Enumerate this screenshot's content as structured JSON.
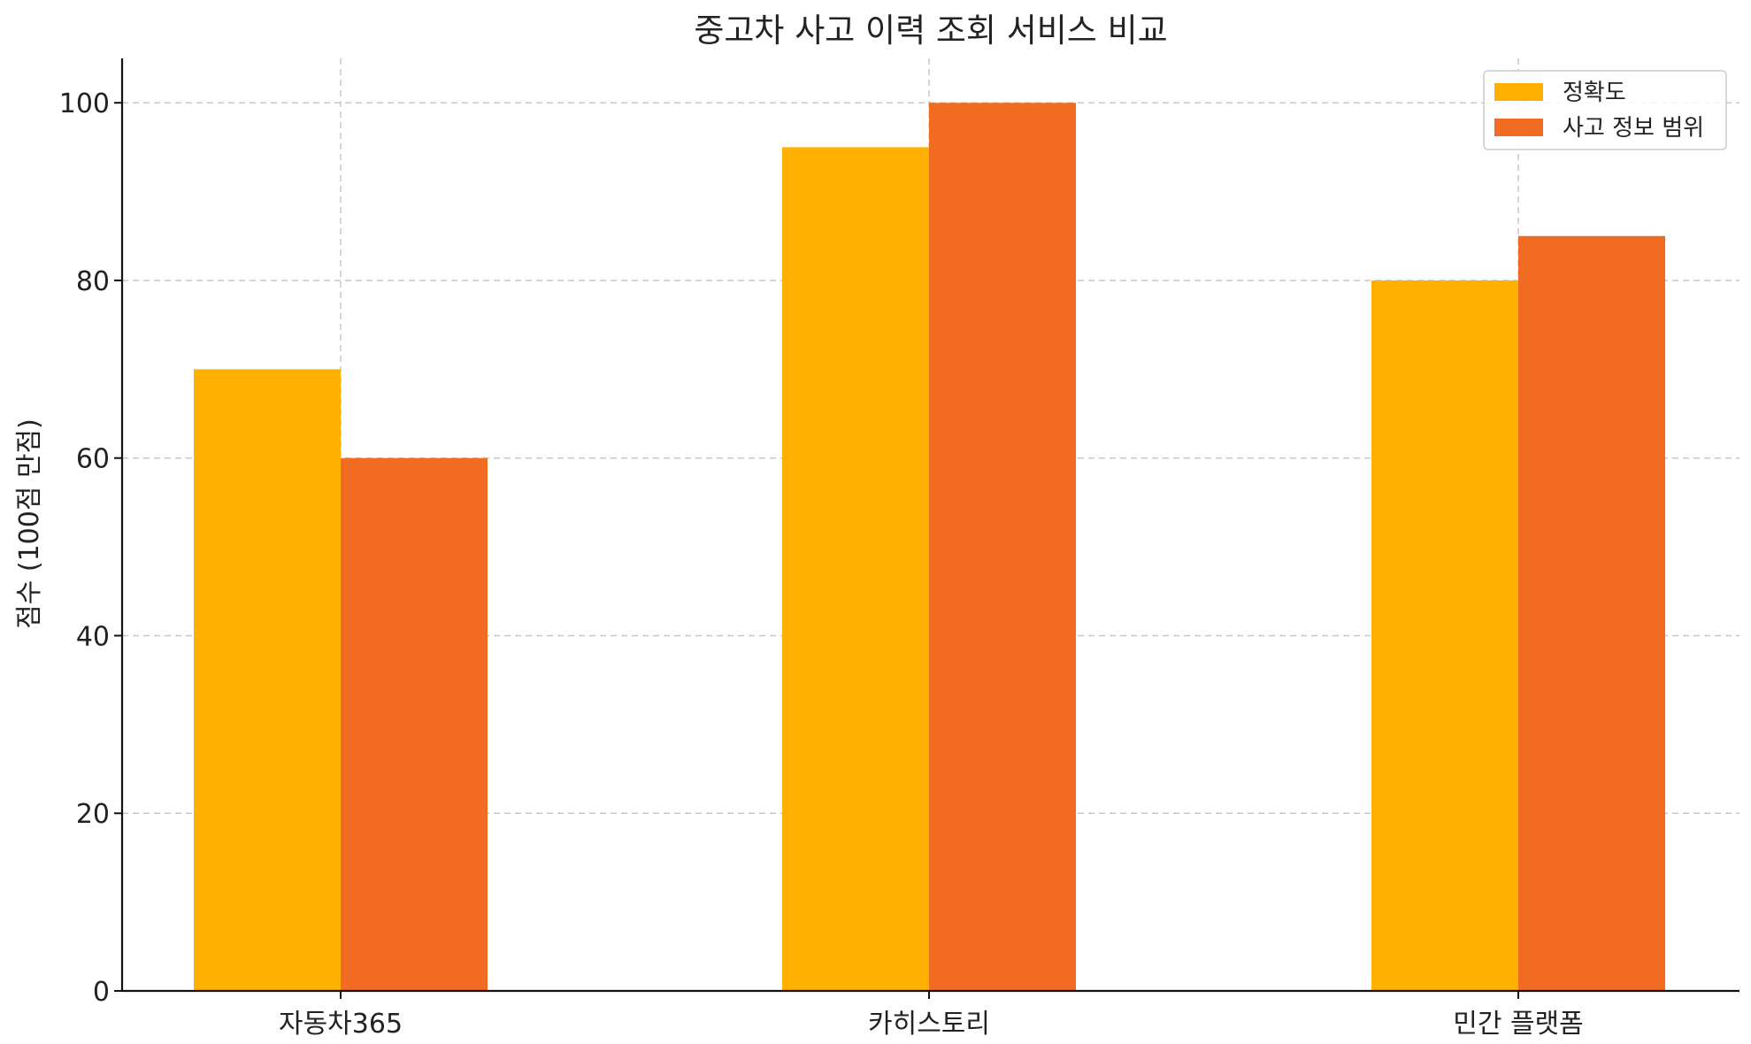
{
  "chart_data": {
    "type": "bar",
    "title": "중고차 사고 이력 조회 서비스 비교",
    "xlabel": "",
    "ylabel": "점수 (100점 만점)",
    "categories": [
      "자동차365",
      "카히스토리",
      "민간 플랫폼"
    ],
    "series": [
      {
        "name": "정확도",
        "values": [
          70,
          95,
          80
        ],
        "color": "#FFB000"
      },
      {
        "name": "사고 정보 범위",
        "values": [
          60,
          100,
          85
        ],
        "color": "#F26B22"
      }
    ],
    "ylim": [
      0,
      105
    ],
    "yticks": [
      0,
      20,
      40,
      60,
      80,
      100
    ],
    "grid": true,
    "legend_position": "top-right"
  }
}
